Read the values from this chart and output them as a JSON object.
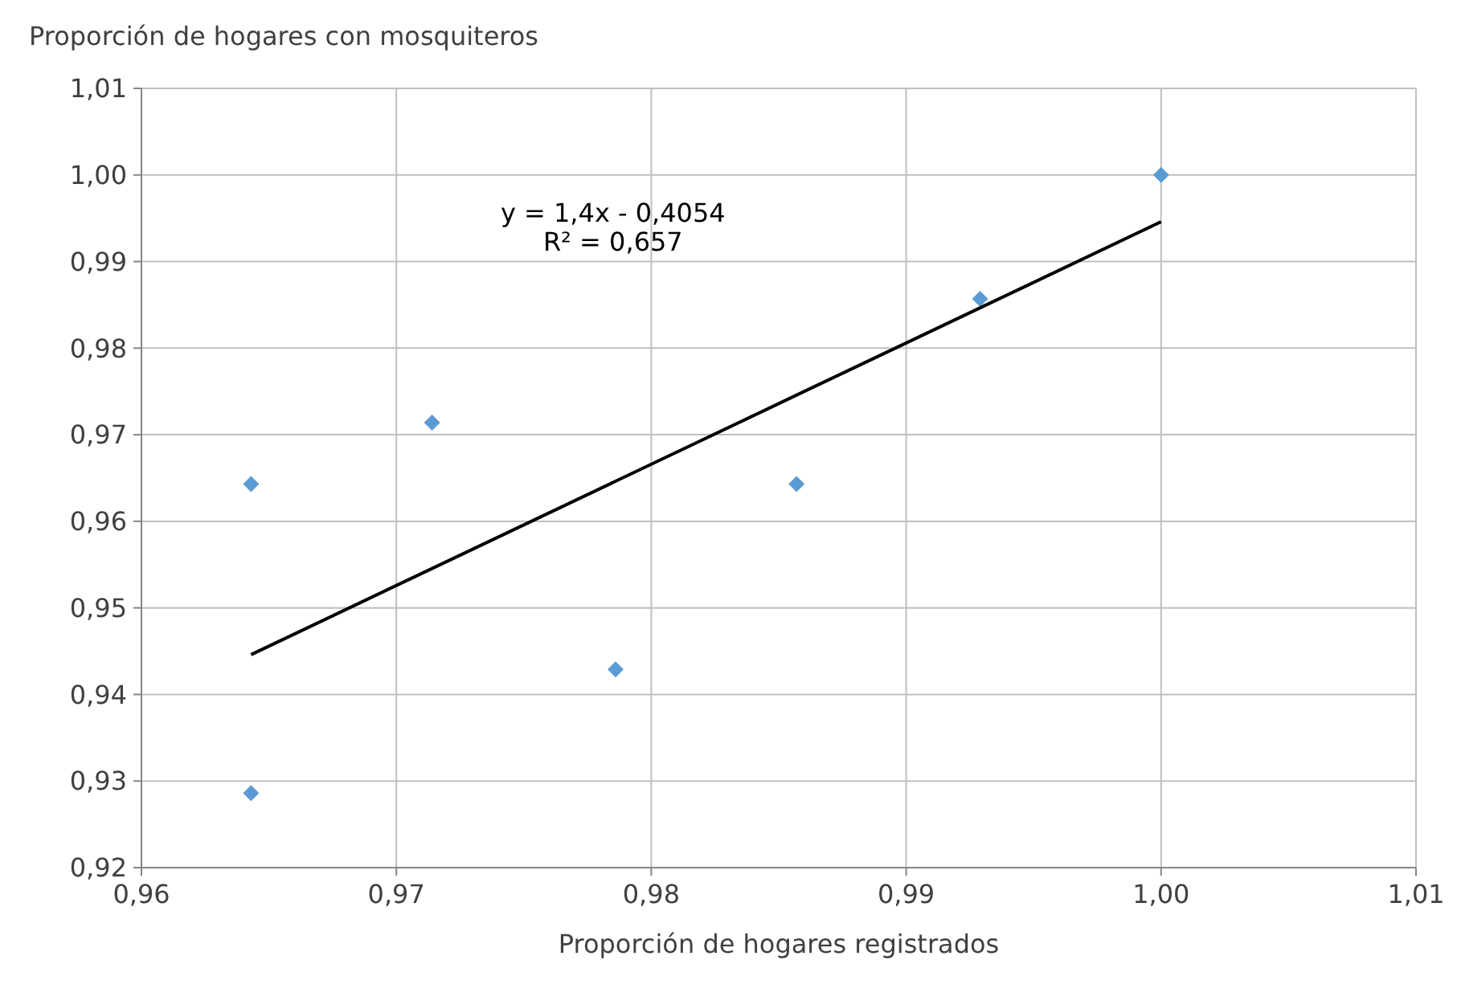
{
  "chart_data": {
    "type": "scatter",
    "xlabel": "Proporción de hogares registrados",
    "ylabel": "Proporción de hogares con mosquiteros",
    "x": [
      0.9643,
      0.9643,
      0.9714,
      0.9786,
      0.9857,
      0.9929,
      1.0
    ],
    "series": [
      {
        "color": "#5b9bd5",
        "marker": "diamond",
        "values": [
          0.9643,
          0.9286,
          0.9714,
          0.9429,
          0.9643,
          0.9857,
          1.0
        ]
      },
      {
        "type": "line",
        "color": "#000000",
        "marker": "none",
        "line_style": "solid",
        "x": [
          0.9643,
          1.0
        ],
        "values": [
          0.9446,
          0.9946
        ]
      }
    ],
    "annotations": [
      "y = 1,4x - 0,4054",
      "R² = 0,657"
    ],
    "xlim": [
      0.96,
      1.01
    ],
    "ylim": [
      0.92,
      1.01
    ],
    "xticks": [
      {
        "value": 0.96,
        "label": "0,96"
      },
      {
        "value": 0.97,
        "label": "0,97"
      },
      {
        "value": 0.98,
        "label": "0,98"
      },
      {
        "value": 0.99,
        "label": "0,99"
      },
      {
        "value": 1.0,
        "label": "1,00"
      },
      {
        "value": 1.01,
        "label": "1,01"
      }
    ],
    "yticks": [
      {
        "value": 0.92,
        "label": "0,92"
      },
      {
        "value": 0.93,
        "label": "0,93"
      },
      {
        "value": 0.94,
        "label": "0,94"
      },
      {
        "value": 0.95,
        "label": "0,95"
      },
      {
        "value": 0.96,
        "label": "0,96"
      },
      {
        "value": 0.97,
        "label": "0,97"
      },
      {
        "value": 0.98,
        "label": "0,98"
      },
      {
        "value": 0.99,
        "label": "0,99"
      },
      {
        "value": 1.0,
        "label": "1,00"
      },
      {
        "value": 1.01,
        "label": "1,01"
      }
    ],
    "grid": true
  }
}
